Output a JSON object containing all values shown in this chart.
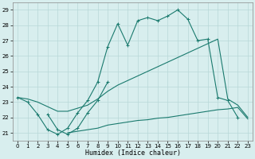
{
  "xlabel": "Humidex (Indice chaleur)",
  "bg_color": "#d8eeee",
  "line_color": "#1a7a6e",
  "grid_color": "#b8d8d8",
  "xlim": [
    -0.5,
    23.5
  ],
  "ylim": [
    20.5,
    29.5
  ],
  "yticks": [
    21,
    22,
    23,
    24,
    25,
    26,
    27,
    28,
    29
  ],
  "xticks": [
    0,
    1,
    2,
    3,
    4,
    5,
    6,
    7,
    8,
    9,
    10,
    11,
    12,
    13,
    14,
    15,
    16,
    17,
    18,
    19,
    20,
    21,
    22,
    23
  ],
  "line1_x": [
    0,
    1,
    2,
    3,
    4,
    5,
    6,
    7,
    8,
    9,
    10,
    11,
    12,
    13,
    14,
    15,
    16,
    17,
    18,
    19,
    20,
    21,
    22
  ],
  "line1_y": [
    23.3,
    23.0,
    22.2,
    21.2,
    20.9,
    21.3,
    22.3,
    23.1,
    24.3,
    26.6,
    28.1,
    26.7,
    28.3,
    28.5,
    28.3,
    28.6,
    29.0,
    28.4,
    27.0,
    27.1,
    23.3,
    23.1,
    22.0
  ],
  "line2_x": [
    3,
    4,
    5,
    6,
    7,
    8,
    9
  ],
  "line2_y": [
    22.2,
    21.2,
    20.9,
    21.3,
    22.3,
    23.1,
    24.3
  ],
  "line3_x": [
    0,
    1,
    2,
    3,
    4,
    5,
    6,
    7,
    8,
    9,
    10,
    11,
    12,
    13,
    14,
    15,
    16,
    17,
    18,
    19,
    20,
    21,
    22,
    23
  ],
  "line3_y": [
    23.3,
    23.2,
    23.0,
    22.7,
    22.4,
    22.4,
    22.6,
    22.8,
    23.2,
    23.7,
    24.1,
    24.4,
    24.7,
    25.0,
    25.3,
    25.6,
    25.9,
    26.2,
    26.5,
    26.8,
    27.1,
    23.2,
    22.8,
    22.0
  ],
  "line4_x": [
    5,
    6,
    7,
    8,
    9,
    10,
    11,
    12,
    13,
    14,
    15,
    16,
    17,
    18,
    19,
    20,
    21,
    22,
    23
  ],
  "line4_y": [
    21.0,
    21.1,
    21.2,
    21.3,
    21.5,
    21.6,
    21.7,
    21.8,
    21.85,
    21.95,
    22.0,
    22.1,
    22.2,
    22.3,
    22.4,
    22.5,
    22.55,
    22.65,
    21.9
  ]
}
